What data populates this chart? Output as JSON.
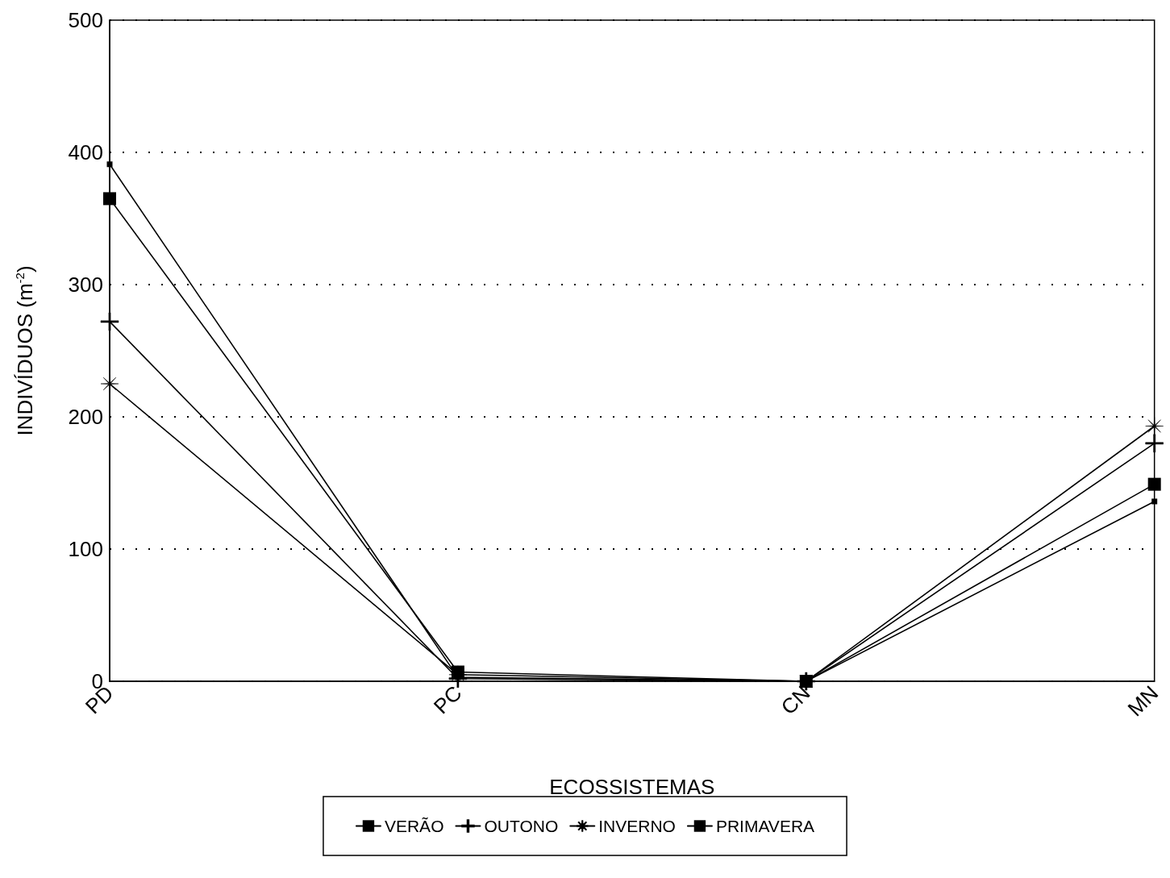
{
  "chart_data": {
    "type": "line",
    "xlabel": "ECOSSISTEMAS",
    "ylabel": "INDIVÍDUOS (m$^{-2}$)",
    "categories": [
      "PD",
      "PC",
      "CN",
      "MN"
    ],
    "ylim": [
      0,
      500
    ],
    "yticks": [
      0,
      100,
      200,
      300,
      400,
      500
    ],
    "grid": "y",
    "legend": "bottom",
    "line_style": "solid",
    "series": [
      {
        "name": "VERÃO",
        "color": "#000000",
        "marker": "square",
        "values": [
          391,
          3,
          0,
          136
        ]
      },
      {
        "name": "OUTONO",
        "color": "#000000",
        "marker": "cross",
        "values": [
          272,
          2,
          0,
          180
        ]
      },
      {
        "name": "INVERNO",
        "color": "#000000",
        "marker": "star",
        "values": [
          225,
          5,
          0,
          193
        ]
      },
      {
        "name": "PRIMAVERA",
        "color": "#000000",
        "marker": "square",
        "values": [
          365,
          7,
          0,
          149
        ]
      }
    ]
  }
}
